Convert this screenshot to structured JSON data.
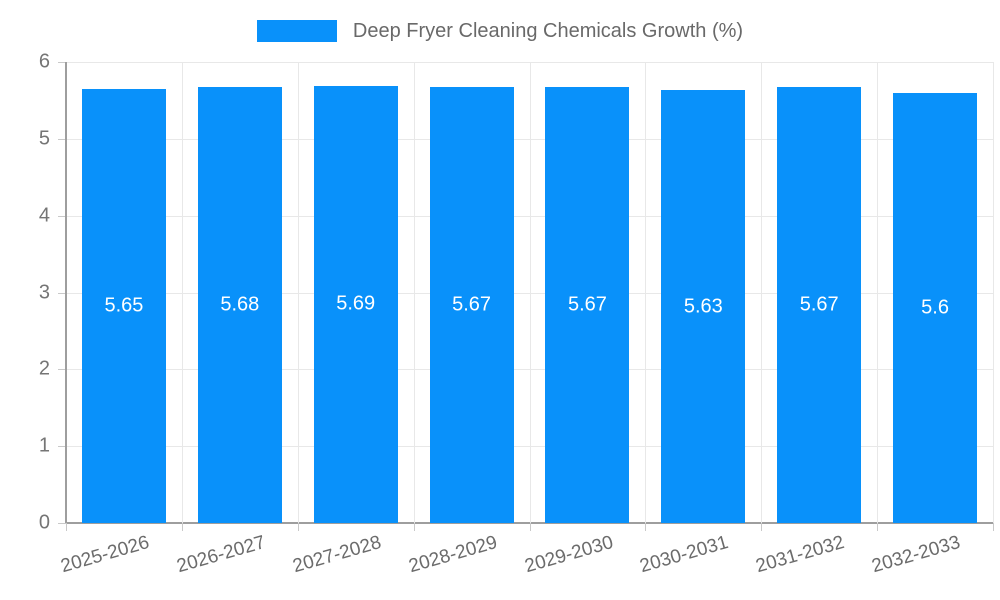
{
  "legend": {
    "label": "Deep Fryer Cleaning Chemicals Growth (%)"
  },
  "colors": {
    "bar": "#0991fa",
    "grid": "#e8e8e8",
    "axis": "#9e9e9e",
    "tick": "#c9c9c9",
    "tick_label": "#757575",
    "x_label": "#6b6b6b",
    "legend_text": "#696969",
    "value_label": "#ffffff",
    "background": "#ffffff"
  },
  "chart_data": {
    "type": "bar",
    "title": "Deep Fryer Cleaning Chemicals Growth (%)",
    "series_name": "Deep Fryer Cleaning Chemicals Growth (%)",
    "categories": [
      "2025-2026",
      "2026-2027",
      "2027-2028",
      "2028-2029",
      "2029-2030",
      "2030-2031",
      "2031-2032",
      "2032-2033"
    ],
    "values": [
      5.65,
      5.68,
      5.69,
      5.67,
      5.67,
      5.63,
      5.67,
      5.6
    ],
    "xlabel": "",
    "ylabel": "",
    "ylim": [
      0,
      6
    ],
    "yticks": [
      0,
      1,
      2,
      3,
      4,
      5,
      6
    ],
    "grid": true,
    "legend_position": "top",
    "value_labels_inside_bars": true,
    "x_label_rotation_deg": -16
  }
}
